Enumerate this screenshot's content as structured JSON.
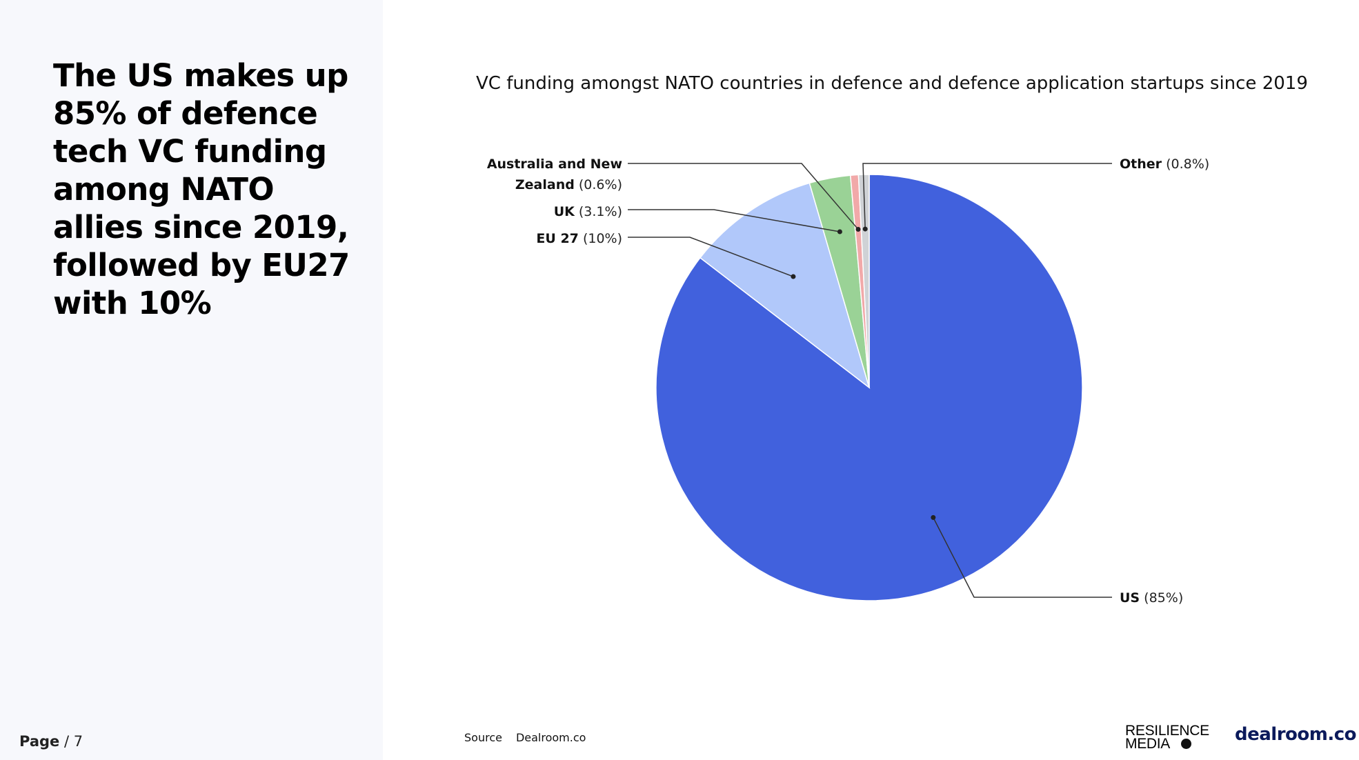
{
  "headline": "The US makes up 85% of defence tech VC funding among NATO allies since 2019, followed by EU27 with 10%",
  "page": {
    "label": "Page",
    "number": "/ 7"
  },
  "source": {
    "label": "Source",
    "value": "Dealroom.co"
  },
  "logos": {
    "resilience_line1": "RESILIENCE",
    "resilience_line2": "MEDIA",
    "dealroom": "dealroom.co"
  },
  "chart_data": {
    "type": "pie",
    "title": "VC funding amongst NATO countries in defence and defence application startups since 2019",
    "slices": [
      {
        "name": "US",
        "value": 85,
        "pct_label": "(85%)",
        "color": "#4161dd"
      },
      {
        "name": "EU 27",
        "value": 10,
        "pct_label": "(10%)",
        "color": "#b1c8fa"
      },
      {
        "name": "UK",
        "value": 3.1,
        "pct_label": "(3.1%)",
        "color": "#9ad296"
      },
      {
        "name": "Australia and New Zealand",
        "value": 0.6,
        "pct_label": "(0.6%)",
        "color": "#f1a9a9"
      },
      {
        "name": "Other",
        "value": 0.8,
        "pct_label": "(0.8%)",
        "color": "#cfd2d6"
      }
    ]
  }
}
